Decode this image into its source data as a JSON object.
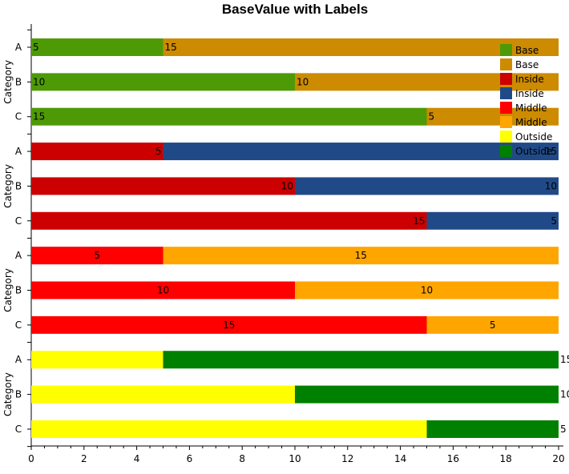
{
  "chart_data": {
    "type": "bar",
    "orientation": "horizontal",
    "stacked": true,
    "title": "BaseValue with Labels",
    "xlabel": "",
    "ylabel": "Category",
    "xlim": [
      0,
      20
    ],
    "x_ticks": [
      0,
      2,
      4,
      6,
      8,
      10,
      12,
      14,
      16,
      18,
      20
    ],
    "legend_position": "top-right",
    "grid": false,
    "panels": [
      {
        "label_position": "base",
        "categories": [
          "A",
          "B",
          "C"
        ],
        "series": [
          {
            "name": "Base",
            "color": "#4e9a06",
            "values": [
              5,
              10,
              15
            ]
          },
          {
            "name": "Base",
            "color": "#cc8b00",
            "values": [
              15,
              10,
              5
            ]
          }
        ]
      },
      {
        "label_position": "inside",
        "categories": [
          "A",
          "B",
          "C"
        ],
        "series": [
          {
            "name": "Inside",
            "color": "#cc0000",
            "values": [
              5,
              10,
              15
            ]
          },
          {
            "name": "Inside",
            "color": "#204a87",
            "values": [
              15,
              10,
              5
            ]
          }
        ]
      },
      {
        "label_position": "middle",
        "categories": [
          "A",
          "B",
          "C"
        ],
        "series": [
          {
            "name": "Middle",
            "color": "#ff0000",
            "values": [
              5,
              10,
              15
            ]
          },
          {
            "name": "Middle",
            "color": "#ffa500",
            "values": [
              15,
              10,
              5
            ]
          }
        ]
      },
      {
        "label_position": "outside",
        "categories": [
          "A",
          "B",
          "C"
        ],
        "series": [
          {
            "name": "Outside",
            "color": "#ffff00",
            "values": [
              5,
              10,
              15
            ]
          },
          {
            "name": "Outside",
            "color": "#008000",
            "values": [
              15,
              10,
              5
            ]
          }
        ]
      }
    ],
    "legend": [
      {
        "name": "Base",
        "color": "#4e9a06"
      },
      {
        "name": "Base",
        "color": "#cc8b00"
      },
      {
        "name": "Inside",
        "color": "#cc0000"
      },
      {
        "name": "Inside",
        "color": "#204a87"
      },
      {
        "name": "Middle",
        "color": "#ff0000"
      },
      {
        "name": "Middle",
        "color": "#ffa500"
      },
      {
        "name": "Outside",
        "color": "#ffff00"
      },
      {
        "name": "Outside",
        "color": "#008000"
      }
    ]
  }
}
